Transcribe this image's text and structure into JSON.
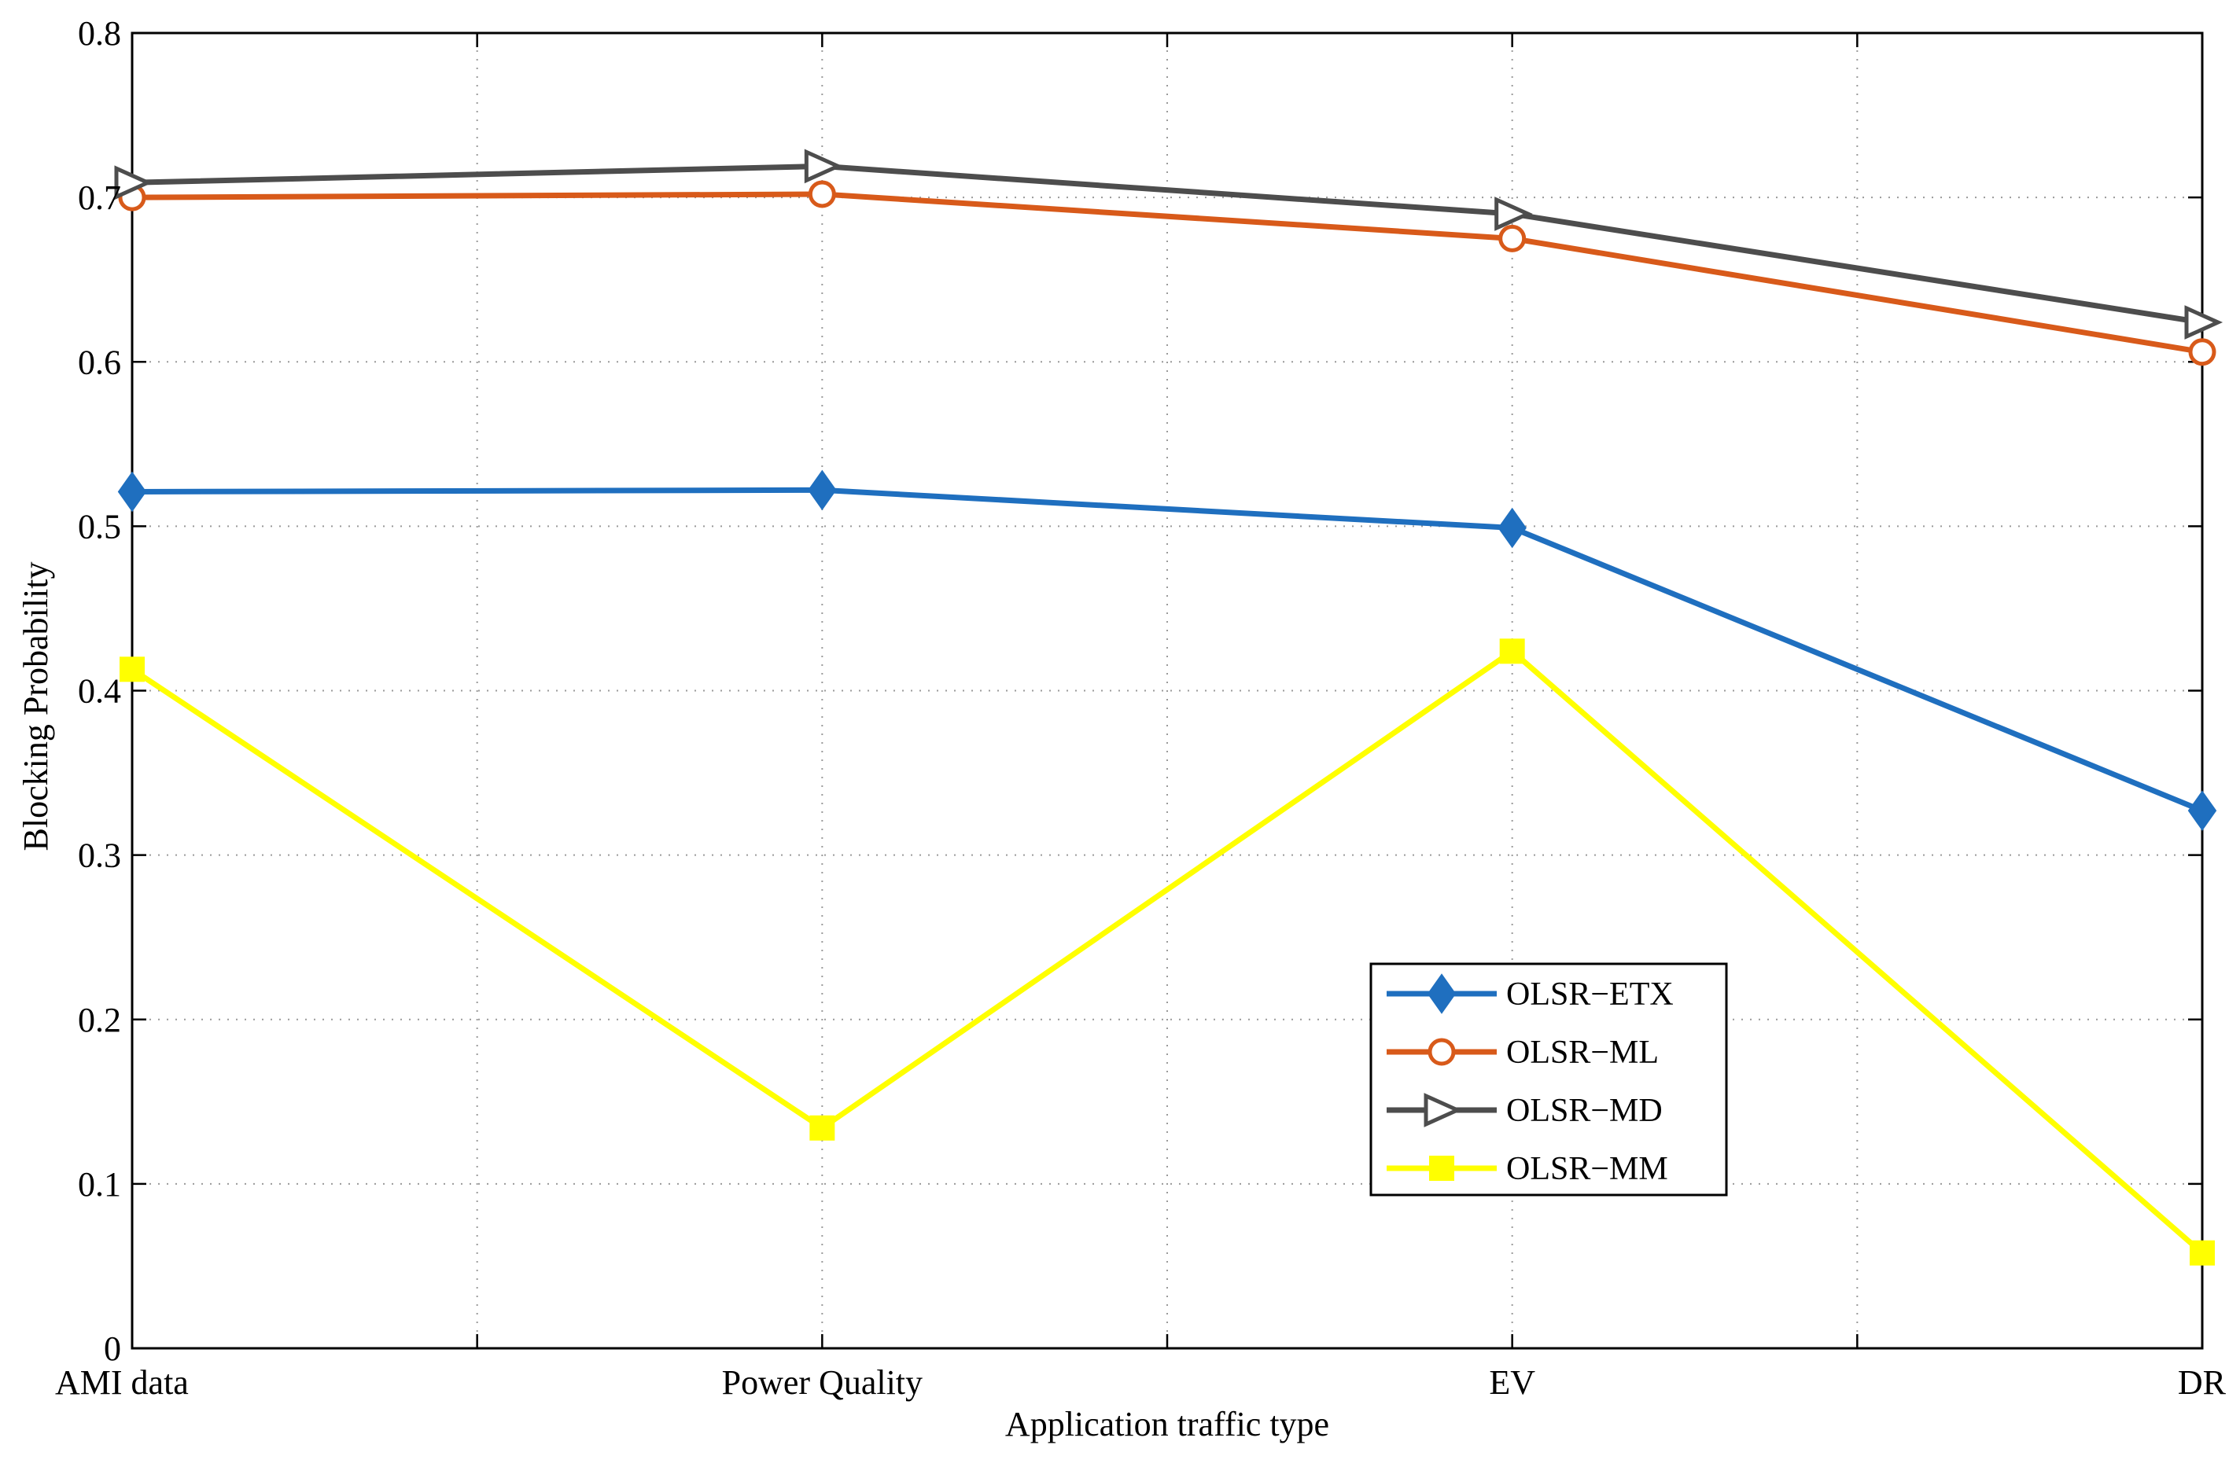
{
  "chart_data": {
    "type": "line",
    "title": "",
    "xlabel": "Application traffic type",
    "ylabel": "Blocking Probability",
    "categories": [
      "AMI data",
      "Power Quality",
      "EV",
      "DR"
    ],
    "ylim": [
      0,
      0.8
    ],
    "yticks": [
      0,
      0.1,
      0.2,
      0.3,
      0.4,
      0.5,
      0.6,
      0.7,
      0.8
    ],
    "ytick_labels": [
      "0",
      "0.1",
      "0.2",
      "0.3",
      "0.4",
      "0.5",
      "0.6",
      "0.7",
      "0.8"
    ],
    "grid": true,
    "legend_position": "lower-right",
    "series": [
      {
        "name": "OLSR−ETX",
        "values": [
          0.521,
          0.522,
          0.499,
          0.327
        ],
        "color": "#1f6fbf",
        "marker": "diamond"
      },
      {
        "name": "OLSR−ML",
        "values": [
          0.7,
          0.702,
          0.675,
          0.606
        ],
        "color": "#d85a1a",
        "marker": "circle"
      },
      {
        "name": "OLSR−MD",
        "values": [
          0.709,
          0.719,
          0.69,
          0.624
        ],
        "color": "#4d4d4d",
        "marker": "triangle-right"
      },
      {
        "name": "OLSR−MM",
        "values": [
          0.413,
          0.134,
          0.424,
          0.058
        ],
        "color": "#ffff00",
        "marker": "square"
      }
    ]
  }
}
